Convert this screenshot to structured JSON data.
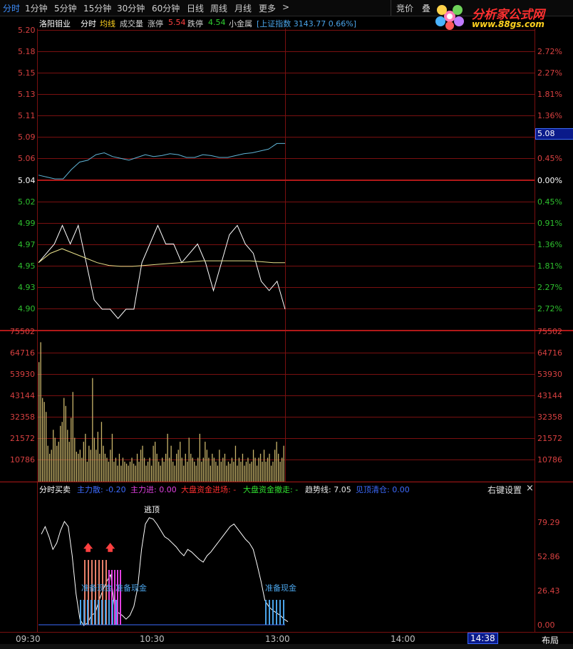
{
  "toolbar": {
    "tabs": [
      "分时",
      "1分钟",
      "5分钟",
      "15分钟",
      "30分钟",
      "60分钟",
      "日线",
      "周线",
      "月线",
      "更多"
    ],
    "more_arrow": ">",
    "right_items": [
      "竞价",
      "叠"
    ]
  },
  "logo": {
    "text": "分析家公式网",
    "url": "www.88gs.com"
  },
  "info": {
    "stock": "洛阳钼业",
    "mode": "分时",
    "avg_label": "均线",
    "vol_label": "成交量",
    "limit_up_label": "涨停",
    "limit_up_value": "5.54",
    "limit_down_label": "跌停",
    "limit_down_value": "4.54",
    "sector": "小金属",
    "index_text": "[上证指数 3143.77 0.66%]"
  },
  "price_axis": {
    "left": [
      "5.20",
      "5.18",
      "5.15",
      "5.13",
      "5.11",
      "5.09",
      "5.06",
      "5.04",
      "5.02",
      "4.99",
      "4.97",
      "4.95",
      "4.93",
      "4.90"
    ],
    "right": [
      "",
      "2.72%",
      "2.27%",
      "1.81%",
      "1.36%",
      "",
      "0.45%",
      "0.00%",
      "0.45%",
      "0.91%",
      "1.36%",
      "1.81%",
      "2.27%",
      "2.72%"
    ],
    "current_price": "5.08",
    "colors": {
      "up": "#d84040",
      "flat": "#ffffff",
      "down": "#2ec02e"
    }
  },
  "volume_axis": {
    "labels": [
      "75502",
      "64716",
      "53930",
      "43144",
      "32358",
      "21572",
      "10786"
    ]
  },
  "indicator": {
    "title": "分时买卖",
    "items": [
      {
        "label": "主力散",
        "value": "-0.20",
        "color": "#3d6bff"
      },
      {
        "label": "主力进",
        "value": "0.00",
        "color": "#e040e0"
      },
      {
        "label": "大盘资金进场",
        "value": "-",
        "color": "#ff3030"
      },
      {
        "label": "大盘资金撤走",
        "value": "-",
        "color": "#30e030"
      },
      {
        "label": "趋势线",
        "value": "7.05",
        "color": "#e8e8e8"
      },
      {
        "label": "见顶清仓",
        "value": "0.00",
        "color": "#3d6bff"
      }
    ],
    "settings_label": "右键设置",
    "close_label": "×",
    "axis": [
      "79.29",
      "52.86",
      "26.43",
      "0.00"
    ],
    "signals": {
      "top": "逃顶",
      "ready1": "准备现金",
      "ready2": "准备现金",
      "ready3": "准备现金"
    }
  },
  "time_axis": {
    "labels": [
      "09:30",
      "10:30",
      "13:00",
      "14:00"
    ],
    "current_time": "14:38",
    "layout_label": "布局"
  },
  "chart_data": {
    "type": "line",
    "title": "",
    "series": [
      {
        "name": "上证指数",
        "values": [
          5.044,
          5.042,
          5.04,
          5.04,
          5.05,
          5.058,
          5.06,
          5.066,
          5.068,
          5.064,
          5.062,
          5.06,
          5.063,
          5.066,
          5.064,
          5.065,
          5.067,
          5.066,
          5.063,
          5.063,
          5.066,
          5.065,
          5.063,
          5.063,
          5.065,
          5.067,
          5.068,
          5.07,
          5.072,
          5.078,
          5.078
        ]
      },
      {
        "name": "洛阳钼业",
        "values": [
          4.95,
          4.96,
          4.97,
          4.99,
          4.97,
          4.99,
          4.95,
          4.91,
          4.9,
          4.9,
          4.89,
          4.9,
          4.9,
          4.95,
          4.97,
          4.99,
          4.97,
          4.97,
          4.95,
          4.96,
          4.97,
          4.95,
          4.92,
          4.95,
          4.98,
          4.99,
          4.97,
          4.96,
          4.93,
          4.92,
          4.93,
          4.9
        ]
      },
      {
        "name": "均线",
        "values": [
          4.95,
          4.96,
          4.965,
          4.96,
          4.955,
          4.95,
          4.947,
          4.946,
          4.946,
          4.947,
          4.948,
          4.949,
          4.95,
          4.951,
          4.952,
          4.952,
          4.952,
          4.952,
          4.952,
          4.951,
          4.95,
          4.95
        ]
      }
    ],
    "volumes": [
      60000,
      70000,
      42000,
      40000,
      35000,
      18000,
      14000,
      16000,
      26000,
      22000,
      18000,
      20000,
      28000,
      30000,
      42000,
      38000,
      26000,
      20000,
      32000,
      45000,
      22000,
      15000,
      14000,
      16000,
      12000,
      20000,
      24000,
      10000,
      18000,
      16000,
      52000,
      22000,
      16000,
      25000,
      14000,
      30000,
      18000,
      14000,
      12000,
      10000,
      16000,
      24000,
      10000,
      12000,
      8000,
      14000,
      8000,
      12000,
      10000,
      9000,
      8000,
      10000,
      12000,
      9000,
      8000,
      14000,
      10000,
      16000,
      18000,
      12000,
      8000,
      10000,
      12000,
      8000,
      18000,
      20000,
      14000,
      10000,
      8000,
      12000,
      10000,
      14000,
      24000,
      12000,
      18000,
      10000,
      8000,
      14000,
      16000,
      20000,
      12000,
      8000,
      14000,
      10000,
      22000,
      14000,
      12000,
      10000,
      8000,
      12000,
      24000,
      10000,
      12000,
      20000,
      16000,
      12000,
      8000,
      14000,
      12000,
      10000,
      8000,
      16000,
      10000,
      12000,
      14000,
      8000,
      10000,
      9000,
      12000,
      10000,
      18000,
      8000,
      12000,
      10000,
      14000,
      8000,
      10000,
      12000,
      9000,
      10000,
      16000,
      12000,
      8000,
      12000,
      14000,
      10000,
      16000,
      10000,
      12000,
      14000,
      8000,
      10000,
      16000,
      20000,
      14000,
      10000,
      12000,
      18000
    ],
    "indicator_values": [
      72,
      78,
      70,
      60,
      65,
      75,
      82,
      78,
      55,
      25,
      5,
      0,
      2,
      8,
      10,
      20,
      28,
      35,
      40,
      15,
      10,
      8,
      5,
      8,
      15,
      30,
      60,
      80,
      85,
      84,
      80,
      75,
      70,
      68,
      65,
      62,
      58,
      55,
      60,
      58,
      55,
      52,
      50,
      55,
      58,
      62,
      66,
      70,
      74,
      78,
      80,
      76,
      72,
      68,
      65,
      60,
      48,
      35,
      20,
      15,
      12,
      10,
      8,
      5,
      3
    ]
  }
}
